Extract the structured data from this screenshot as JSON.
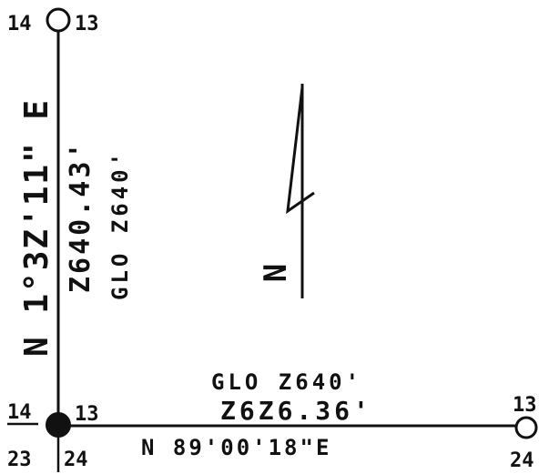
{
  "corners": {
    "top_left": [
      "14",
      "13"
    ],
    "bottom_left_top": [
      "14",
      "13"
    ],
    "bottom_left_bottom": [
      "23",
      "24"
    ],
    "bottom_right": [
      "13",
      "24"
    ]
  },
  "west_line": {
    "bearing": "N 1°32'11\" E",
    "bearing_display": "N 1°3Z'11\" E",
    "distance": "2640.43'",
    "distance_display": "Z640.43'",
    "glo_distance": "GLO 2640'",
    "glo_display": "GLO Z640'"
  },
  "south_line": {
    "glo_distance": "GLO 2640'",
    "glo_display": "GLO Z640'",
    "distance": "2626.36'",
    "distance_display": "Z6Z6.36'",
    "bearing": "N 89°00'18\" E",
    "bearing_display": "N 89'00'18\"E"
  },
  "north_arrow": {
    "label": "N"
  }
}
